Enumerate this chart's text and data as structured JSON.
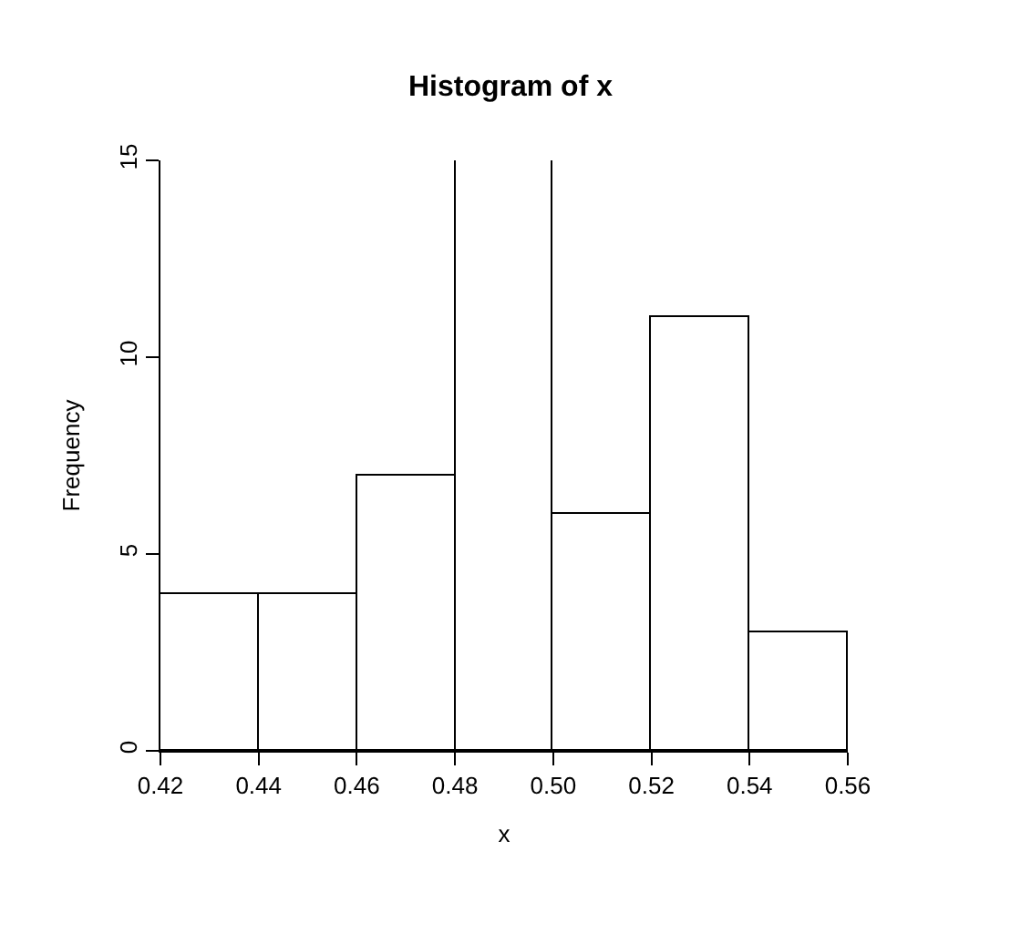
{
  "chart_data": {
    "type": "histogram",
    "title": "Histogram of x",
    "xlabel": "x",
    "ylabel": "Frequency",
    "bins": [
      0.42,
      0.44,
      0.46,
      0.48,
      0.5,
      0.52,
      0.54,
      0.56
    ],
    "values": [
      4,
      4,
      7,
      15,
      6,
      11,
      3
    ],
    "color": "#ffffff",
    "xlim": [
      0.42,
      0.56
    ],
    "xticks": [
      {
        "value": 0.42,
        "label": "0.42"
      },
      {
        "value": 0.44,
        "label": "0.44"
      },
      {
        "value": 0.46,
        "label": "0.46"
      },
      {
        "value": 0.48,
        "label": "0.48"
      },
      {
        "value": 0.5,
        "label": "0.50"
      },
      {
        "value": 0.52,
        "label": "0.52"
      },
      {
        "value": 0.54,
        "label": "0.54"
      },
      {
        "value": 0.56,
        "label": "0.56"
      }
    ],
    "ylim": [
      0,
      15
    ],
    "yticks": [
      0,
      5,
      10,
      15
    ]
  }
}
